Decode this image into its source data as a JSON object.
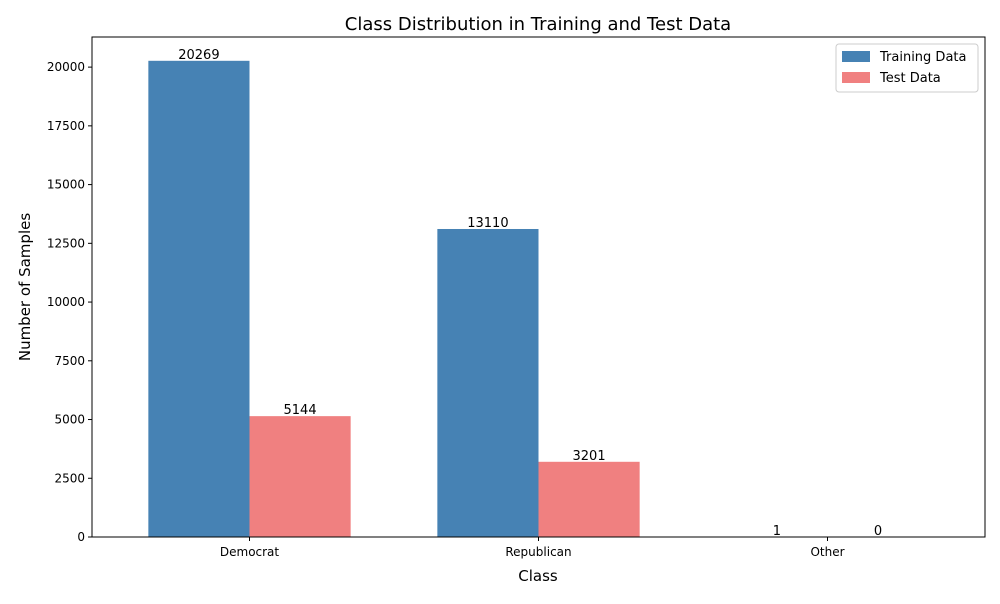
{
  "chart_data": {
    "type": "bar",
    "title": "Class Distribution in Training and Test Data",
    "xlabel": "Class",
    "ylabel": "Number of Samples",
    "categories": [
      "Democrat",
      "Republican",
      "Other"
    ],
    "series": [
      {
        "name": "Training Data",
        "values": [
          20269,
          13110,
          1
        ],
        "color": "#4682b4"
      },
      {
        "name": "Test Data",
        "values": [
          5144,
          3201,
          0
        ],
        "color": "#f08080"
      }
    ],
    "ylim": [
      0,
      21282
    ],
    "yticks": [
      0,
      2500,
      5000,
      7500,
      10000,
      12500,
      15000,
      17500,
      20000
    ],
    "ytick_labels": [
      "0",
      "2500",
      "5000",
      "7500",
      "10000",
      "12500",
      "15000",
      "17500",
      "20000"
    ],
    "data_labels": [
      [
        "20269",
        "13110",
        "1"
      ],
      [
        "5144",
        "3201",
        "0"
      ]
    ],
    "grid": false,
    "legend_position": "top-right"
  }
}
